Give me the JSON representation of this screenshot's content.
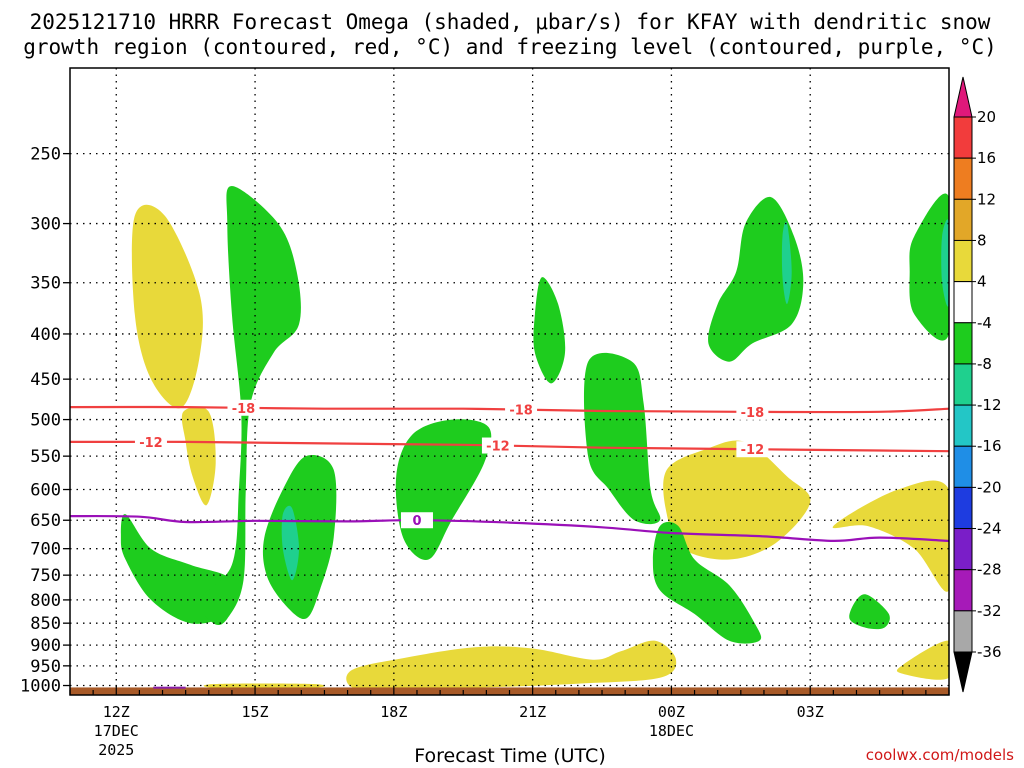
{
  "title_line1": "2025121710 HRRR Forecast Omega (shaded, μbar/s) for KFAY with dendritic snow",
  "title_line2": "growth region (contoured, red, °C) and freezing level (contoured, purple, °C)",
  "watermark": "coolwx.com/models",
  "chart_data": {
    "type": "heatmap",
    "xlabel": "Forecast Time (UTC)",
    "ylabel": "",
    "x_range_hours": [
      -1,
      37
    ],
    "y_range_mb": [
      200,
      1025
    ],
    "y_ticks": [
      "250",
      "300",
      "350",
      "400",
      "450",
      "500",
      "550",
      "600",
      "650",
      "700",
      "750",
      "800",
      "850",
      "900",
      "950",
      "1000"
    ],
    "y_tick_values": [
      250,
      300,
      350,
      400,
      450,
      500,
      550,
      600,
      650,
      700,
      750,
      800,
      850,
      900,
      950,
      1000
    ],
    "x_ticks": [
      {
        "label": "12Z",
        "hour": 1,
        "sub1": "17DEC",
        "sub2": "2025"
      },
      {
        "label": "15Z",
        "hour": 7,
        "sub1": "",
        "sub2": ""
      },
      {
        "label": "18Z",
        "hour": 13,
        "sub1": "",
        "sub2": ""
      },
      {
        "label": "21Z",
        "hour": 19,
        "sub1": "",
        "sub2": ""
      },
      {
        "label": "00Z",
        "hour": 25,
        "sub1": "18DEC",
        "sub2": ""
      },
      {
        "label": "03Z",
        "hour": 31,
        "sub1": "",
        "sub2": ""
      }
    ],
    "colorbar": {
      "labels": [
        "20",
        "16",
        "12",
        "8",
        "4",
        "-4",
        "-8",
        "-12",
        "-16",
        "-20",
        "-24",
        "-28",
        "-32",
        "-36"
      ],
      "bands": [
        {
          "from": 20,
          "to": 16,
          "color": "#f23c3c"
        },
        {
          "from": 16,
          "to": 12,
          "color": "#ee7d20"
        },
        {
          "from": 12,
          "to": 8,
          "color": "#e2a728"
        },
        {
          "from": 8,
          "to": 4,
          "color": "#e8d93a"
        },
        {
          "from": 4,
          "to": -4,
          "color": "#ffffff"
        },
        {
          "from": -4,
          "to": -8,
          "color": "#1ecc1e"
        },
        {
          "from": -8,
          "to": -12,
          "color": "#1fd08e"
        },
        {
          "from": -12,
          "to": -16,
          "color": "#23c6c6"
        },
        {
          "from": -16,
          "to": -20,
          "color": "#1f8ee6"
        },
        {
          "from": -20,
          "to": -24,
          "color": "#1e3ce0"
        },
        {
          "from": -24,
          "to": -28,
          "color": "#7a1ec8"
        },
        {
          "from": -28,
          "to": -32,
          "color": "#a61ab8"
        },
        {
          "from": -32,
          "to": -36,
          "color": "#a8a8a8"
        }
      ],
      "top_arrow_color": "#e0187a",
      "bottom_arrow_color": "#000000"
    },
    "isotherms": [
      {
        "name": "-18",
        "color": "#f04040",
        "labels_at_hours": [
          6.5,
          18.5,
          28.5
        ],
        "points": [
          [
            -1,
            484
          ],
          [
            4,
            484
          ],
          [
            10,
            486
          ],
          [
            16,
            486
          ],
          [
            22,
            489
          ],
          [
            28,
            490
          ],
          [
            34,
            490
          ],
          [
            37,
            486
          ]
        ]
      },
      {
        "name": "-12",
        "color": "#f04040",
        "labels_at_hours": [
          2.5,
          17.5,
          28.5
        ],
        "points": [
          [
            -1,
            530
          ],
          [
            4,
            530
          ],
          [
            10,
            532
          ],
          [
            16,
            534
          ],
          [
            22,
            538
          ],
          [
            28,
            540
          ],
          [
            34,
            542
          ],
          [
            37,
            543
          ]
        ]
      },
      {
        "name": "0",
        "color": "#9a10b8",
        "labels_at_hours": [
          14.0
        ],
        "points": [
          [
            -1,
            643
          ],
          [
            2,
            644
          ],
          [
            4,
            653
          ],
          [
            7,
            651
          ],
          [
            11,
            652
          ],
          [
            14,
            650
          ],
          [
            18,
            654
          ],
          [
            22,
            662
          ],
          [
            25,
            672
          ],
          [
            29,
            678
          ],
          [
            32,
            686
          ],
          [
            34,
            680
          ],
          [
            37,
            686
          ]
        ]
      }
    ],
    "shaded_regions": [
      {
        "name": "yellow-1",
        "color": "#e8d93a",
        "points": [
          [
            1.8,
            294
          ],
          [
            3.1,
            294
          ],
          [
            4.6,
            360
          ],
          [
            4.6,
            425
          ],
          [
            3.8,
            485
          ],
          [
            2.5,
            450
          ],
          [
            1.8,
            380
          ]
        ]
      },
      {
        "name": "yellow-2",
        "color": "#e8d93a",
        "points": [
          [
            3.9,
            490
          ],
          [
            5.0,
            490
          ],
          [
            5.3,
            560
          ],
          [
            4.9,
            625
          ],
          [
            4.3,
            580
          ],
          [
            4.0,
            530
          ]
        ]
      },
      {
        "name": "yellow-3",
        "color": "#e8d93a",
        "points": [
          [
            24.8,
            570
          ],
          [
            26.5,
            540
          ],
          [
            28.2,
            530
          ],
          [
            30,
            580
          ],
          [
            31,
            620
          ],
          [
            29.5,
            690
          ],
          [
            27.5,
            720
          ],
          [
            25.5,
            700
          ],
          [
            24.8,
            640
          ]
        ]
      },
      {
        "name": "yellow-4",
        "color": "#e8d93a",
        "points": [
          [
            32,
            660
          ],
          [
            34.8,
            600
          ],
          [
            37,
            600
          ],
          [
            37,
            780
          ],
          [
            35.5,
            700
          ],
          [
            33.5,
            660
          ]
        ]
      },
      {
        "name": "yellow-5",
        "color": "#e8d93a",
        "points": [
          [
            11.2,
            960
          ],
          [
            13.5,
            930
          ],
          [
            16.5,
            905
          ],
          [
            19,
            908
          ],
          [
            21.6,
            935
          ],
          [
            22.8,
            915
          ],
          [
            24.3,
            890
          ],
          [
            25.2,
            935
          ],
          [
            24.5,
            980
          ],
          [
            21,
            995
          ],
          [
            17,
            1005
          ],
          [
            13,
            1010
          ],
          [
            11.2,
            1005
          ]
        ]
      },
      {
        "name": "yellow-6",
        "color": "#e8d93a",
        "points": [
          [
            35,
            948
          ],
          [
            37,
            890
          ],
          [
            37,
            980
          ],
          [
            35,
            970
          ]
        ]
      },
      {
        "name": "yellow-7",
        "color": "#e8d93a",
        "points": [
          [
            5.3,
            996
          ],
          [
            9.5,
            996
          ],
          [
            9.5,
            1006
          ],
          [
            5.3,
            1006
          ]
        ]
      },
      {
        "name": "green-1",
        "color": "#1ecc1e",
        "points": [
          [
            1.4,
            640
          ],
          [
            2.5,
            700
          ],
          [
            4.2,
            730
          ],
          [
            6.0,
            760
          ],
          [
            5.7,
            830
          ],
          [
            4.2,
            850
          ],
          [
            2.5,
            800
          ],
          [
            1.4,
            720
          ],
          [
            1.2,
            680
          ]
        ]
      },
      {
        "name": "green-2",
        "color": "#1ecc1e",
        "points": [
          [
            6.0,
            272
          ],
          [
            8.0,
            300
          ],
          [
            8.8,
            340
          ],
          [
            8.9,
            390
          ],
          [
            7.8,
            420
          ],
          [
            6.8,
            480
          ],
          [
            6.6,
            600
          ],
          [
            6.5,
            760
          ],
          [
            5.8,
            840
          ],
          [
            5.2,
            850
          ],
          [
            4.6,
            800
          ],
          [
            6.0,
            730
          ],
          [
            6.3,
            600
          ],
          [
            6.4,
            490
          ],
          [
            6.0,
            380
          ],
          [
            5.8,
            300
          ]
        ]
      },
      {
        "name": "green-3",
        "color": "#1ecc1e",
        "points": [
          [
            7.4,
            680
          ],
          [
            8.2,
            600
          ],
          [
            9.2,
            550
          ],
          [
            10.4,
            570
          ],
          [
            10.4,
            680
          ],
          [
            9.8,
            780
          ],
          [
            9.2,
            840
          ],
          [
            8.3,
            810
          ],
          [
            7.5,
            750
          ]
        ]
      },
      {
        "name": "green-4",
        "color": "#1ecc1e",
        "points": [
          [
            13.8,
            520
          ],
          [
            15.5,
            500
          ],
          [
            17.1,
            510
          ],
          [
            16.9,
            560
          ],
          [
            15.5,
            650
          ],
          [
            14.5,
            720
          ],
          [
            13.4,
            680
          ],
          [
            13.1,
            580
          ]
        ]
      },
      {
        "name": "green-5",
        "color": "#1ecc1e",
        "points": [
          [
            19.4,
            345
          ],
          [
            20.1,
            370
          ],
          [
            20.4,
            420
          ],
          [
            19.8,
            455
          ],
          [
            19.1,
            420
          ],
          [
            19.1,
            380
          ]
        ]
      },
      {
        "name": "green-6",
        "color": "#1ecc1e",
        "points": [
          [
            21.4,
            430
          ],
          [
            23.3,
            430
          ],
          [
            23.8,
            480
          ],
          [
            24.1,
            600
          ],
          [
            24.5,
            650
          ],
          [
            23.4,
            650
          ],
          [
            22.3,
            600
          ],
          [
            21.4,
            550
          ]
        ]
      },
      {
        "name": "green-7",
        "color": "#1ecc1e",
        "points": [
          [
            24.5,
            660
          ],
          [
            25.3,
            660
          ],
          [
            26.0,
            720
          ],
          [
            27.5,
            770
          ],
          [
            28.6,
            850
          ],
          [
            28.8,
            890
          ],
          [
            27.5,
            890
          ],
          [
            26.0,
            830
          ],
          [
            24.5,
            780
          ],
          [
            24.2,
            720
          ]
        ]
      },
      {
        "name": "green-8",
        "color": "#1ecc1e",
        "points": [
          [
            28.2,
            300
          ],
          [
            29.3,
            280
          ],
          [
            30.3,
            310
          ],
          [
            30.7,
            350
          ],
          [
            30.2,
            390
          ],
          [
            28.5,
            410
          ],
          [
            27.5,
            430
          ],
          [
            26.6,
            410
          ],
          [
            27.0,
            370
          ],
          [
            27.8,
            340
          ]
        ]
      },
      {
        "name": "green-9",
        "color": "#1ecc1e",
        "points": [
          [
            35.5,
            310
          ],
          [
            37,
            280
          ],
          [
            37,
            400
          ],
          [
            35.5,
            380
          ],
          [
            35.3,
            340
          ]
        ]
      },
      {
        "name": "green-10",
        "color": "#1ecc1e",
        "points": [
          [
            33.0,
            800
          ],
          [
            33.5,
            790
          ],
          [
            34.4,
            830
          ],
          [
            34.2,
            860
          ],
          [
            33.4,
            860
          ],
          [
            32.7,
            840
          ]
        ]
      },
      {
        "name": "teal-1",
        "color": "#1fd08e",
        "points": [
          [
            8.2,
            640
          ],
          [
            8.6,
            630
          ],
          [
            8.9,
            700
          ],
          [
            8.6,
            760
          ],
          [
            8.2,
            700
          ]
        ]
      },
      {
        "name": "teal-2",
        "color": "#1fd08e",
        "points": [
          [
            29.8,
            310
          ],
          [
            30.0,
            300
          ],
          [
            30.2,
            340
          ],
          [
            30.0,
            370
          ],
          [
            29.8,
            345
          ]
        ]
      },
      {
        "name": "teal-3",
        "color": "#1fd08e",
        "points": [
          [
            36.7,
            310
          ],
          [
            37,
            300
          ],
          [
            37,
            370
          ],
          [
            36.7,
            350
          ]
        ]
      }
    ],
    "ground_color": "#a85a28",
    "ground_start_mb": 1005,
    "ground_extra": [
      {
        "from_hour": 2.6,
        "to_hour": 4.0,
        "from_mb": 1003,
        "to_mb": 1005,
        "color": "#8a20a8"
      }
    ]
  }
}
